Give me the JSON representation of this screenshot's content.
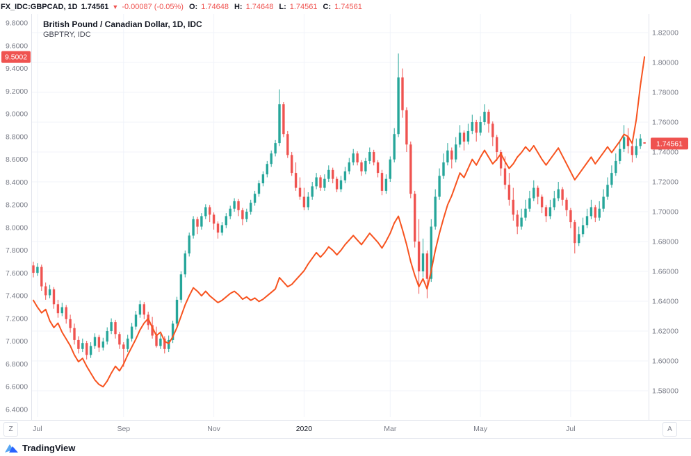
{
  "header": {
    "symbol": "FX_IDC:GBPCAD, 1D",
    "last_price": "1.74561",
    "arrow": "▼",
    "change": "-0.00087 (-0.05%)",
    "o_label": "O:",
    "o_value": "1.74648",
    "h_label": "H:",
    "h_value": "1.74648",
    "l_label": "L:",
    "l_value": "1.74561",
    "c_label": "C:",
    "c_value": "1.74561"
  },
  "legend": {
    "line1": "British Pound / Canadian Dollar, 1D, IDC",
    "line2": "GBPTRY, IDC"
  },
  "colors": {
    "up": "#26a69a",
    "down": "#ef5350",
    "line": "#f7531f",
    "badge": "#ef5350",
    "axis_text": "#787b86",
    "grid": "#f0f3fa"
  },
  "left_axis": {
    "badge": "9.5002",
    "labels": [
      "9.8000",
      "9.6000",
      "9.4000",
      "9.2000",
      "9.0000",
      "8.8000",
      "8.6000",
      "8.4000",
      "8.2000",
      "8.0000",
      "7.8000",
      "7.6000",
      "7.4000",
      "7.2000",
      "7.0000",
      "6.8000",
      "6.6000",
      "6.4000"
    ]
  },
  "right_axis": {
    "badge": "1.74561",
    "labels": [
      "1.82000",
      "1.80000",
      "1.78000",
      "1.76000",
      "1.74000",
      "1.72000",
      "1.70000",
      "1.68000",
      "1.66000",
      "1.64000",
      "1.62000",
      "1.60000",
      "1.58000"
    ]
  },
  "time_axis": {
    "ticks": [
      {
        "text": "Jul",
        "index": 1
      },
      {
        "text": "Sep",
        "index": 22
      },
      {
        "text": "Nov",
        "index": 44
      },
      {
        "text": "2020",
        "index": 66,
        "year": true
      },
      {
        "text": "Mar",
        "index": 87
      },
      {
        "text": "May",
        "index": 109
      },
      {
        "text": "Jul",
        "index": 131
      }
    ],
    "zoom_button": "Z",
    "auto_button": "A"
  },
  "footer": {
    "brand": "TradingView"
  },
  "chart_data": {
    "type": "candlestick+line",
    "title": "British Pound / Canadian Dollar, 1D, IDC",
    "overlay": "GBPTRY, IDC",
    "right_axis_range": [
      1.58,
      1.82
    ],
    "left_axis_range": [
      6.4,
      9.8
    ],
    "x_ticks": [
      "Jul",
      "Sep",
      "Nov",
      "2020",
      "Mar",
      "May",
      "Jul"
    ],
    "legend_position": "top-left",
    "grid": true,
    "series": [
      {
        "name": "GBPCAD",
        "type": "candlestick",
        "scale": "right",
        "ohlc": [
          [
            1.664,
            1.6665,
            1.656,
            1.659
          ],
          [
            1.659,
            1.6655,
            1.657,
            1.663
          ],
          [
            1.663,
            1.6645,
            1.647,
            1.65
          ],
          [
            1.65,
            1.6525,
            1.641,
            1.644
          ],
          [
            1.644,
            1.651,
            1.642,
            1.648
          ],
          [
            1.648,
            1.6495,
            1.635,
            1.638
          ],
          [
            1.638,
            1.641,
            1.629,
            1.632
          ],
          [
            1.632,
            1.639,
            1.63,
            1.636
          ],
          [
            1.636,
            1.6375,
            1.625,
            1.628
          ],
          [
            1.628,
            1.631,
            1.619,
            1.622
          ],
          [
            1.622,
            1.625,
            1.611,
            1.614
          ],
          [
            1.614,
            1.6165,
            1.605,
            1.608
          ],
          [
            1.608,
            1.615,
            1.606,
            1.612
          ],
          [
            1.612,
            1.6135,
            1.601,
            1.604
          ],
          [
            1.604,
            1.6125,
            1.602,
            1.61
          ],
          [
            1.61,
            1.6185,
            1.608,
            1.616
          ],
          [
            1.616,
            1.6175,
            1.606,
            1.609
          ],
          [
            1.609,
            1.6155,
            1.607,
            1.613
          ],
          [
            1.613,
            1.6225,
            1.611,
            1.62
          ],
          [
            1.62,
            1.6285,
            1.618,
            1.626
          ],
          [
            1.626,
            1.6275,
            1.615,
            1.618
          ],
          [
            1.618,
            1.6195,
            1.608,
            1.611
          ],
          [
            1.611,
            1.6125,
            1.596,
            1.608
          ],
          [
            1.608,
            1.6175,
            1.606,
            1.615
          ],
          [
            1.615,
            1.6255,
            1.613,
            1.623
          ],
          [
            1.623,
            1.6335,
            1.621,
            1.631
          ],
          [
            1.631,
            1.6405,
            1.629,
            1.638
          ],
          [
            1.638,
            1.6395,
            1.628,
            1.631
          ],
          [
            1.631,
            1.633,
            1.621,
            1.624
          ],
          [
            1.624,
            1.6295,
            1.615,
            1.617
          ],
          [
            1.617,
            1.623,
            1.609,
            1.61
          ],
          [
            1.61,
            1.618,
            1.608,
            1.615
          ],
          [
            1.615,
            1.6165,
            1.605,
            1.608
          ],
          [
            1.608,
            1.617,
            1.606,
            1.614
          ],
          [
            1.614,
            1.627,
            1.612,
            1.625
          ],
          [
            1.625,
            1.643,
            1.623,
            1.641
          ],
          [
            1.641,
            1.66,
            1.639,
            1.658
          ],
          [
            1.658,
            1.674,
            1.656,
            1.672
          ],
          [
            1.672,
            1.686,
            1.67,
            1.684
          ],
          [
            1.684,
            1.697,
            1.682,
            1.695
          ],
          [
            1.695,
            1.6965,
            1.685,
            1.69
          ],
          [
            1.69,
            1.699,
            1.688,
            1.697
          ],
          [
            1.697,
            1.705,
            1.695,
            1.703
          ],
          [
            1.703,
            1.7045,
            1.693,
            1.698
          ],
          [
            1.698,
            1.6995,
            1.688,
            1.692
          ],
          [
            1.692,
            1.6935,
            1.682,
            1.686
          ],
          [
            1.686,
            1.693,
            1.684,
            1.691
          ],
          [
            1.691,
            1.699,
            1.689,
            1.697
          ],
          [
            1.697,
            1.704,
            1.695,
            1.702
          ],
          [
            1.702,
            1.709,
            1.7,
            1.707
          ],
          [
            1.707,
            1.7085,
            1.697,
            1.701
          ],
          [
            1.701,
            1.7025,
            1.691,
            1.695
          ],
          [
            1.695,
            1.702,
            1.693,
            1.7
          ],
          [
            1.7,
            1.708,
            1.698,
            1.706
          ],
          [
            1.706,
            1.714,
            1.704,
            1.712
          ],
          [
            1.712,
            1.721,
            1.71,
            1.719
          ],
          [
            1.719,
            1.727,
            1.717,
            1.725
          ],
          [
            1.725,
            1.734,
            1.723,
            1.732
          ],
          [
            1.732,
            1.741,
            1.73,
            1.739
          ],
          [
            1.739,
            1.748,
            1.737,
            1.746
          ],
          [
            1.746,
            1.782,
            1.744,
            1.772
          ],
          [
            1.772,
            1.7735,
            1.75,
            1.752
          ],
          [
            1.752,
            1.754,
            1.736,
            1.738
          ],
          [
            1.738,
            1.74,
            1.724,
            1.726
          ],
          [
            1.726,
            1.733,
            1.714,
            1.716
          ],
          [
            1.716,
            1.723,
            1.708,
            1.71
          ],
          [
            1.71,
            1.716,
            1.701,
            1.703
          ],
          [
            1.703,
            1.713,
            1.701,
            1.71
          ],
          [
            1.71,
            1.72,
            1.708,
            1.717
          ],
          [
            1.717,
            1.726,
            1.715,
            1.723
          ],
          [
            1.723,
            1.7245,
            1.714,
            1.716
          ],
          [
            1.716,
            1.725,
            1.714,
            1.722
          ],
          [
            1.722,
            1.731,
            1.72,
            1.728
          ],
          [
            1.728,
            1.7295,
            1.719,
            1.722
          ],
          [
            1.722,
            1.7235,
            1.713,
            1.715
          ],
          [
            1.715,
            1.724,
            1.713,
            1.721
          ],
          [
            1.721,
            1.73,
            1.719,
            1.727
          ],
          [
            1.727,
            1.736,
            1.725,
            1.733
          ],
          [
            1.733,
            1.742,
            1.731,
            1.739
          ],
          [
            1.739,
            1.7405,
            1.731,
            1.733
          ],
          [
            1.733,
            1.7345,
            1.724,
            1.727
          ],
          [
            1.727,
            1.736,
            1.725,
            1.734
          ],
          [
            1.734,
            1.743,
            1.732,
            1.74
          ],
          [
            1.74,
            1.7415,
            1.731,
            1.733
          ],
          [
            1.733,
            1.7345,
            1.723,
            1.726
          ],
          [
            1.726,
            1.728,
            1.711,
            1.714
          ],
          [
            1.714,
            1.725,
            1.712,
            1.722
          ],
          [
            1.722,
            1.737,
            1.72,
            1.735
          ],
          [
            1.735,
            1.756,
            1.733,
            1.752
          ],
          [
            1.752,
            1.806,
            1.75,
            1.79
          ],
          [
            1.79,
            1.796,
            1.763,
            1.768
          ],
          [
            1.768,
            1.77,
            1.74,
            1.745
          ],
          [
            1.745,
            1.747,
            1.709,
            1.712
          ],
          [
            1.712,
            1.714,
            1.676,
            1.68
          ],
          [
            1.68,
            1.695,
            1.645,
            1.66
          ],
          [
            1.66,
            1.682,
            1.656,
            1.672
          ],
          [
            1.672,
            1.674,
            1.642,
            1.655
          ],
          [
            1.655,
            1.695,
            1.653,
            1.69
          ],
          [
            1.69,
            1.715,
            1.688,
            1.71
          ],
          [
            1.71,
            1.729,
            1.708,
            1.724
          ],
          [
            1.724,
            1.739,
            1.722,
            1.733
          ],
          [
            1.733,
            1.746,
            1.731,
            1.741
          ],
          [
            1.741,
            1.743,
            1.729,
            1.735
          ],
          [
            1.735,
            1.75,
            1.733,
            1.745
          ],
          [
            1.745,
            1.758,
            1.743,
            1.753
          ],
          [
            1.753,
            1.7545,
            1.741,
            1.747
          ],
          [
            1.747,
            1.759,
            1.745,
            1.754
          ],
          [
            1.754,
            1.765,
            1.752,
            1.76
          ],
          [
            1.76,
            1.7615,
            1.747,
            1.753
          ],
          [
            1.753,
            1.764,
            1.751,
            1.76
          ],
          [
            1.76,
            1.772,
            1.758,
            1.767
          ],
          [
            1.767,
            1.7685,
            1.753,
            1.759
          ],
          [
            1.759,
            1.7605,
            1.744,
            1.75
          ],
          [
            1.75,
            1.7515,
            1.734,
            1.74
          ],
          [
            1.74,
            1.7415,
            1.724,
            1.729
          ],
          [
            1.729,
            1.737,
            1.715,
            1.718
          ],
          [
            1.718,
            1.726,
            1.704,
            1.708
          ],
          [
            1.708,
            1.716,
            1.694,
            1.698
          ],
          [
            1.698,
            1.701,
            1.685,
            1.69
          ],
          [
            1.69,
            1.702,
            1.688,
            1.696
          ],
          [
            1.696,
            1.708,
            1.694,
            1.702
          ],
          [
            1.702,
            1.714,
            1.7,
            1.709
          ],
          [
            1.709,
            1.721,
            1.707,
            1.716
          ],
          [
            1.716,
            1.7175,
            1.705,
            1.71
          ],
          [
            1.71,
            1.7115,
            1.699,
            1.703
          ],
          [
            1.703,
            1.7045,
            1.693,
            1.697
          ],
          [
            1.697,
            1.708,
            1.695,
            1.703
          ],
          [
            1.703,
            1.714,
            1.701,
            1.709
          ],
          [
            1.709,
            1.72,
            1.707,
            1.715
          ],
          [
            1.715,
            1.7165,
            1.704,
            1.708
          ],
          [
            1.708,
            1.7095,
            1.697,
            1.701
          ],
          [
            1.701,
            1.7025,
            1.689,
            1.693
          ],
          [
            1.693,
            1.6945,
            1.672,
            1.679
          ],
          [
            1.679,
            1.69,
            1.677,
            1.685
          ],
          [
            1.685,
            1.696,
            1.683,
            1.691
          ],
          [
            1.691,
            1.702,
            1.689,
            1.697
          ],
          [
            1.697,
            1.708,
            1.695,
            1.703
          ],
          [
            1.703,
            1.7045,
            1.693,
            1.696
          ],
          [
            1.696,
            1.707,
            1.694,
            1.702
          ],
          [
            1.702,
            1.715,
            1.7,
            1.71
          ],
          [
            1.71,
            1.723,
            1.708,
            1.718
          ],
          [
            1.718,
            1.731,
            1.716,
            1.726
          ],
          [
            1.726,
            1.739,
            1.724,
            1.734
          ],
          [
            1.734,
            1.747,
            1.732,
            1.742
          ],
          [
            1.742,
            1.758,
            1.74,
            1.75
          ],
          [
            1.75,
            1.756,
            1.739,
            1.744
          ],
          [
            1.744,
            1.7455,
            1.733,
            1.738
          ],
          [
            1.738,
            1.749,
            1.736,
            1.744
          ],
          [
            1.744,
            1.752,
            1.742,
            1.749
          ],
          [
            1.7465,
            1.7465,
            1.7456,
            1.7456
          ]
        ]
      },
      {
        "name": "GBPTRY",
        "type": "line",
        "scale": "left",
        "values": [
          7.36,
          7.3,
          7.25,
          7.28,
          7.18,
          7.12,
          7.16,
          7.08,
          7.02,
          6.96,
          6.88,
          6.82,
          6.85,
          6.78,
          6.72,
          6.66,
          6.62,
          6.6,
          6.65,
          6.72,
          6.78,
          6.74,
          6.8,
          6.88,
          6.95,
          7.02,
          7.1,
          7.16,
          7.2,
          7.12,
          7.05,
          7.08,
          7.0,
          6.98,
          7.04,
          7.12,
          7.22,
          7.32,
          7.4,
          7.47,
          7.44,
          7.4,
          7.44,
          7.4,
          7.37,
          7.34,
          7.36,
          7.39,
          7.42,
          7.44,
          7.41,
          7.37,
          7.39,
          7.36,
          7.38,
          7.35,
          7.37,
          7.4,
          7.43,
          7.46,
          7.56,
          7.52,
          7.48,
          7.5,
          7.54,
          7.58,
          7.62,
          7.68,
          7.73,
          7.78,
          7.74,
          7.78,
          7.83,
          7.8,
          7.76,
          7.8,
          7.85,
          7.89,
          7.93,
          7.89,
          7.85,
          7.9,
          7.95,
          7.91,
          7.87,
          7.82,
          7.88,
          7.95,
          8.04,
          8.1,
          7.98,
          7.85,
          7.7,
          7.58,
          7.48,
          7.55,
          7.46,
          7.62,
          7.8,
          7.95,
          8.08,
          8.2,
          8.28,
          8.38,
          8.48,
          8.44,
          8.52,
          8.6,
          8.55,
          8.62,
          8.68,
          8.62,
          8.56,
          8.6,
          8.65,
          8.58,
          8.52,
          8.56,
          8.62,
          8.66,
          8.71,
          8.67,
          8.72,
          8.66,
          8.6,
          8.55,
          8.6,
          8.65,
          8.7,
          8.63,
          8.56,
          8.49,
          8.42,
          8.47,
          8.52,
          8.57,
          8.62,
          8.56,
          8.61,
          8.66,
          8.71,
          8.66,
          8.71,
          8.76,
          8.82,
          8.8,
          8.74,
          8.95,
          9.25,
          9.5
        ]
      }
    ]
  }
}
